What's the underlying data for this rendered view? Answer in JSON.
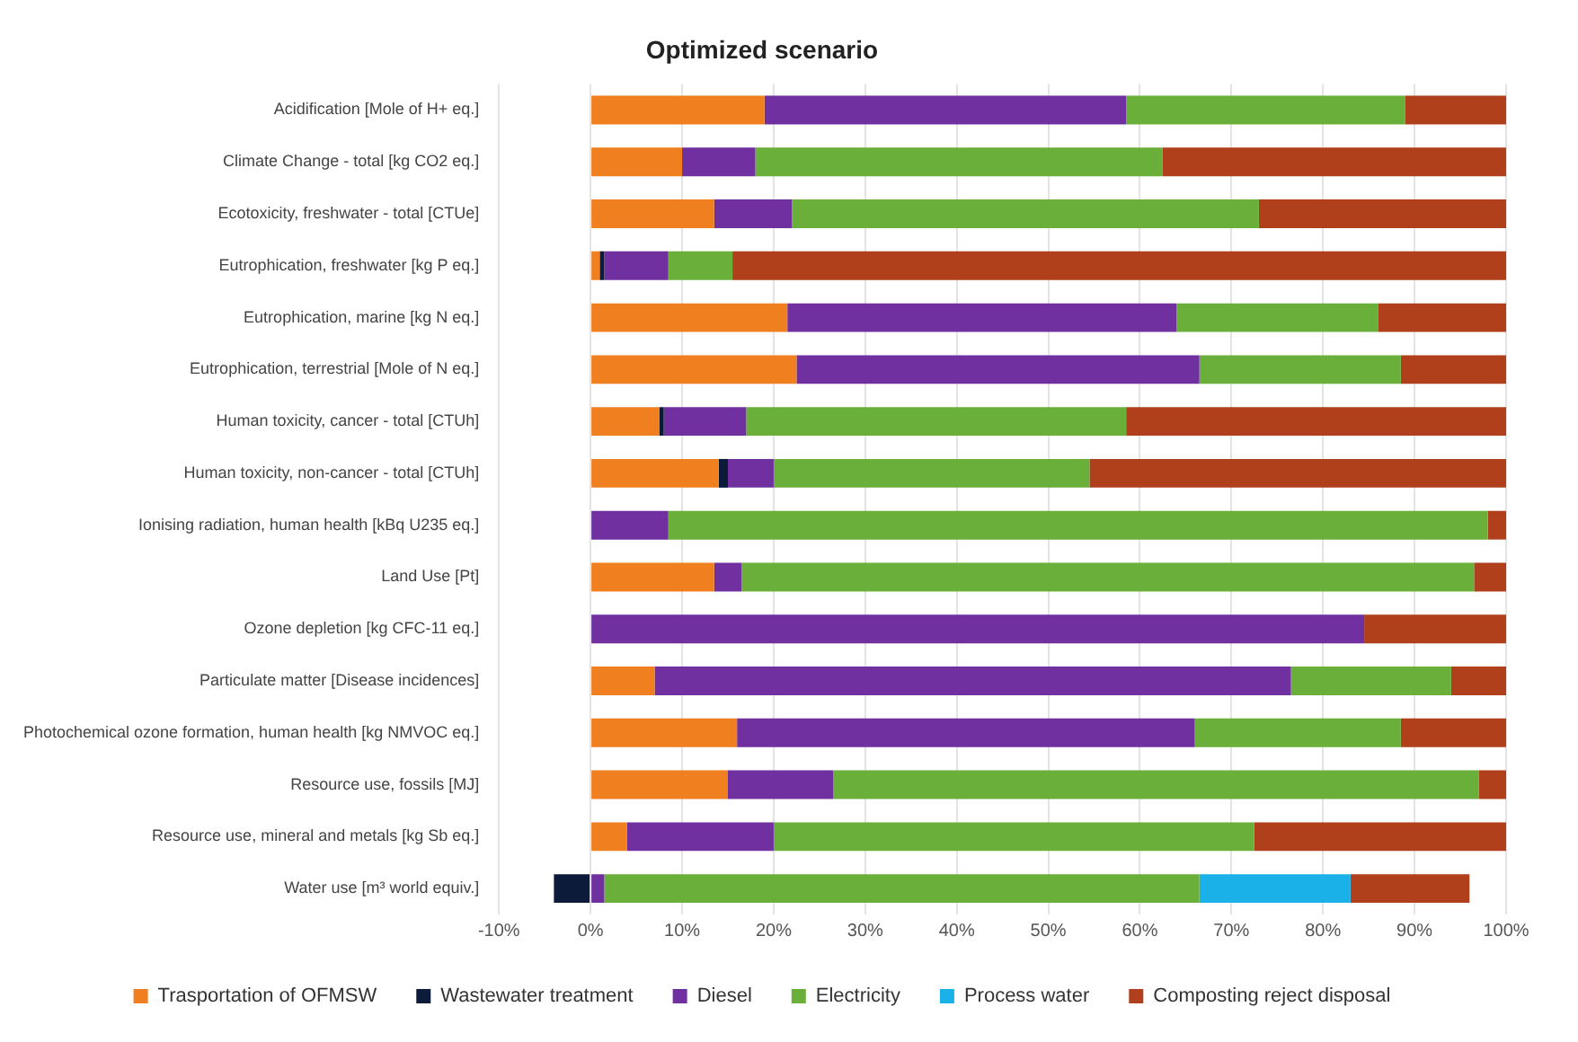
{
  "chart_data": {
    "type": "bar",
    "orientation": "horizontal",
    "stacked": true,
    "title": "Optimized scenario",
    "categories": [
      "Acidification [Mole of H+ eq.]",
      "Climate Change - total [kg CO2 eq.]",
      "Ecotoxicity, freshwater - total [CTUe]",
      "Eutrophication, freshwater [kg P eq.]",
      "Eutrophication, marine [kg N eq.]",
      "Eutrophication, terrestrial [Mole of N eq.]",
      "Human toxicity, cancer - total [CTUh]",
      "Human toxicity, non-cancer - total [CTUh]",
      "Ionising radiation, human health [kBq U235 eq.]",
      "Land Use [Pt]",
      "Ozone depletion [kg CFC-11 eq.]",
      "Particulate matter [Disease incidences]",
      "Photochemical ozone formation, human health [kg NMVOC eq.]",
      "Resource use, fossils [MJ]",
      "Resource use, mineral and metals [kg Sb eq.]",
      "Water use [m³ world equiv.]"
    ],
    "series": [
      {
        "name": "Trasportation of OFMSW",
        "color": "#f07f1f",
        "values": [
          19,
          10,
          13.5,
          1,
          21.5,
          22.5,
          7.5,
          14,
          0,
          13.5,
          0,
          7,
          16,
          15,
          4,
          0
        ]
      },
      {
        "name": "Wastewater treatment",
        "color": "#0d1b3a",
        "values": [
          0,
          0,
          0,
          0.5,
          0,
          0,
          0.5,
          1,
          0,
          0,
          0,
          0,
          0,
          0,
          0,
          -4
        ]
      },
      {
        "name": "Diesel",
        "color": "#7030a0",
        "values": [
          39.5,
          8,
          8.5,
          7,
          42.5,
          44,
          9,
          5,
          8.5,
          3,
          84.5,
          69.5,
          50,
          11.5,
          16,
          1.5
        ]
      },
      {
        "name": "Electricity",
        "color": "#6aaf3a",
        "values": [
          30.5,
          44.5,
          51,
          7,
          22,
          22,
          41.5,
          34.5,
          89.5,
          80,
          0,
          17.5,
          22.5,
          70.5,
          52.5,
          65
        ]
      },
      {
        "name": "Process water",
        "color": "#1ab0e8",
        "values": [
          0,
          0,
          0,
          0,
          0,
          0,
          0,
          0,
          0,
          0,
          0,
          0,
          0,
          0,
          0,
          16.5
        ]
      },
      {
        "name": "Composting reject disposal",
        "color": "#b0401b",
        "values": [
          11,
          37.5,
          27,
          84.5,
          14,
          11.5,
          41.5,
          45.5,
          2,
          3.5,
          15.5,
          6,
          11.5,
          3,
          27.5,
          13
        ]
      }
    ],
    "xlim": [
      -10,
      100
    ],
    "xticks": [
      {
        "value": -10,
        "label": "-10%"
      },
      {
        "value": 0,
        "label": "0%"
      },
      {
        "value": 10,
        "label": "10%"
      },
      {
        "value": 20,
        "label": "20%"
      },
      {
        "value": 30,
        "label": "30%"
      },
      {
        "value": 40,
        "label": "40%"
      },
      {
        "value": 50,
        "label": "50%"
      },
      {
        "value": 60,
        "label": "60%"
      },
      {
        "value": 70,
        "label": "70%"
      },
      {
        "value": 80,
        "label": "80%"
      },
      {
        "value": 90,
        "label": "90%"
      },
      {
        "value": 100,
        "label": "100%"
      }
    ],
    "grid": "x",
    "legend": "bottom"
  }
}
